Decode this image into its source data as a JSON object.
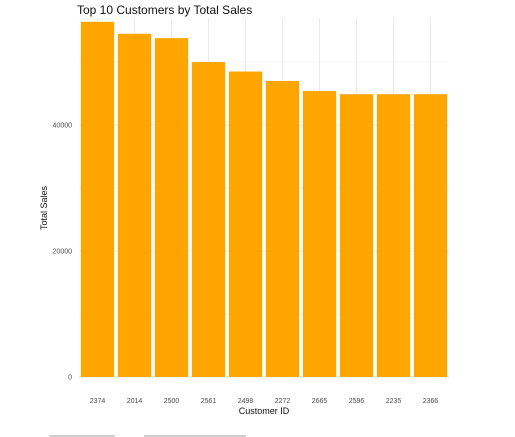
{
  "chart_data": {
    "type": "bar",
    "title": "Top 10 Customers by Total Sales",
    "xlabel": "Customer ID",
    "ylabel": "Total Sales",
    "categories": [
      "2374",
      "2014",
      "2500",
      "2561",
      "2498",
      "2272",
      "2665",
      "2596",
      "2235",
      "2366"
    ],
    "values": [
      56400,
      54500,
      53800,
      50000,
      48500,
      47000,
      45400,
      44900,
      44900,
      44900
    ],
    "ylim": [
      0,
      57000
    ],
    "yticks": [
      0,
      20000,
      40000
    ],
    "ytick_labels": [
      "0",
      "20000",
      "40000"
    ],
    "grid": true,
    "legend": "none",
    "bar_color": "#FFA500",
    "grid_color": "#ebebeb"
  }
}
